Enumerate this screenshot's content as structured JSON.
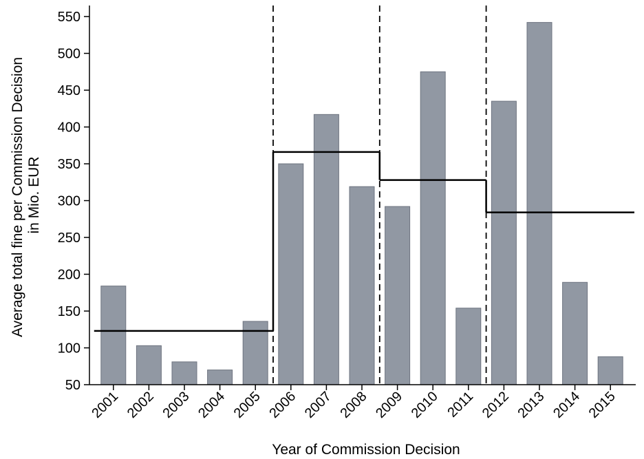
{
  "chart_data": {
    "type": "bar",
    "categories": [
      "2001",
      "2002",
      "2003",
      "2004",
      "2005",
      "2006",
      "2007",
      "2008",
      "2009",
      "2010",
      "2011",
      "2012",
      "2013",
      "2014",
      "2015"
    ],
    "values": [
      184,
      103,
      81,
      70,
      136,
      350,
      417,
      319,
      292,
      475,
      154,
      435,
      542,
      189,
      88
    ],
    "bar_color": "#9198a3",
    "bar_edge_color": "#6e7480",
    "xlabel": "Year of Commission Decision",
    "ylabel_lines": [
      "Average total fine per Commission Decision",
      "in Mio. EUR"
    ],
    "ylim": [
      50,
      565
    ],
    "yticks": [
      50,
      100,
      150,
      200,
      250,
      300,
      350,
      400,
      450,
      500,
      550
    ],
    "grid": false,
    "step_lines": [
      {
        "from": "2001",
        "to": "2005",
        "value": 123
      },
      {
        "from": "2006",
        "to": "2008",
        "value": 366
      },
      {
        "from": "2009",
        "to": "2011",
        "value": 328
      },
      {
        "from": "2012",
        "to": "2015",
        "value": 284
      }
    ],
    "breaks_after": [
      "2005",
      "2008",
      "2011"
    ]
  }
}
